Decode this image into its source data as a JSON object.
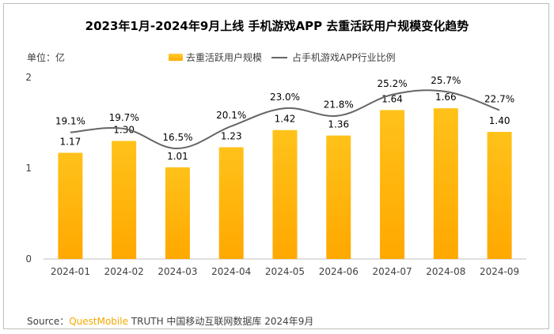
{
  "chart_data": {
    "type": "bar",
    "title": "2023年1月-2024年9月上线 手机游戏APP 去重活跃用户规模变化趋势",
    "unit_label": "单位：亿",
    "categories": [
      "2024-01",
      "2024-02",
      "2024-03",
      "2024-04",
      "2024-05",
      "2024-06",
      "2024-07",
      "2024-08",
      "2024-09"
    ],
    "series": [
      {
        "name": "去重活跃用户规模",
        "type": "bar",
        "values": [
          1.17,
          1.3,
          1.01,
          1.23,
          1.42,
          1.36,
          1.64,
          1.66,
          1.4
        ],
        "labels": [
          "1.17",
          "1.30",
          "1.01",
          "1.23",
          "1.42",
          "1.36",
          "1.64",
          "1.66",
          "1.40"
        ],
        "color": "#ffb400"
      },
      {
        "name": "占手机游戏APP行业比例",
        "type": "line",
        "values": [
          19.1,
          19.7,
          16.5,
          20.1,
          23.0,
          21.8,
          25.2,
          25.7,
          22.7
        ],
        "labels": [
          "19.1%",
          "19.7%",
          "16.5%",
          "20.1%",
          "23.0%",
          "21.8%",
          "25.2%",
          "25.7%",
          "22.7%"
        ],
        "color": "#666666"
      }
    ],
    "yticks": [
      "0",
      "1",
      "2"
    ],
    "ylim": [
      0,
      2
    ]
  },
  "source": {
    "prefix": "Source：",
    "brand": "QuestMobile",
    "rest": " TRUTH 中国移动互联网数据库 2024年9月"
  }
}
